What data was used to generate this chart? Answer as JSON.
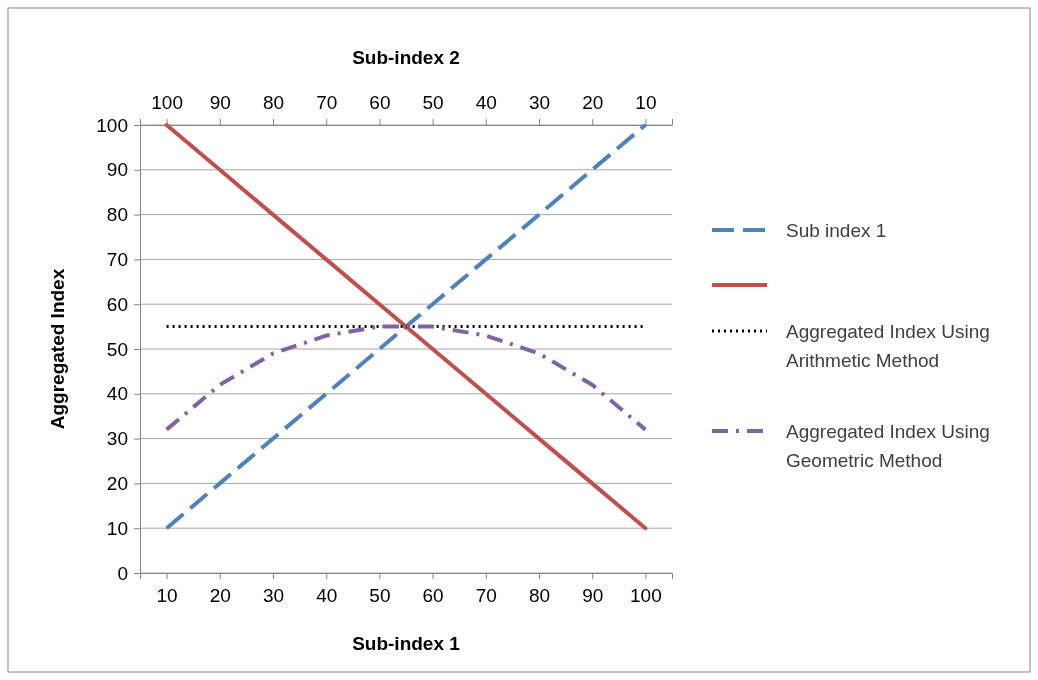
{
  "chart_data": {
    "type": "line",
    "xlabel": "Sub-index 1",
    "x2label": "Sub-index 2",
    "ylabel": "Aggregated Index",
    "x": [
      10,
      20,
      30,
      40,
      50,
      60,
      70,
      80,
      90,
      100
    ],
    "xlim": [
      5,
      105
    ],
    "xticks": [
      10,
      20,
      30,
      40,
      50,
      60,
      70,
      80,
      90,
      100
    ],
    "x2lim": [
      105,
      5
    ],
    "x2ticks": [
      100,
      90,
      80,
      70,
      60,
      50,
      40,
      30,
      20,
      10
    ],
    "ylim": [
      0,
      100
    ],
    "yticks": [
      0,
      10,
      20,
      30,
      40,
      50,
      60,
      70,
      80,
      90,
      100
    ],
    "grid": "y",
    "legend": "right",
    "marker": "none",
    "series": [
      {
        "name": "Sub index 1",
        "color": "#4f81bd",
        "line_style": "dashed",
        "values": [
          10,
          20,
          30,
          40,
          50,
          60,
          70,
          80,
          90,
          100
        ]
      },
      {
        "color": "#c0504d",
        "line_style": "solid",
        "values": [
          100,
          90,
          80,
          70,
          60,
          50,
          40,
          30,
          20,
          10
        ]
      },
      {
        "name": "Aggregated Index Using Arithmetic Method",
        "color": "#000000",
        "line_style": "dotted",
        "values": [
          55,
          55,
          55,
          55,
          55,
          55,
          55,
          55,
          55,
          55
        ]
      },
      {
        "name": "Aggregated Index Using Geometric Method",
        "color": "#8064a2",
        "line_style": "dashdot",
        "values": [
          32,
          42,
          49,
          53,
          55,
          55,
          53,
          49,
          42,
          32
        ]
      }
    ]
  }
}
